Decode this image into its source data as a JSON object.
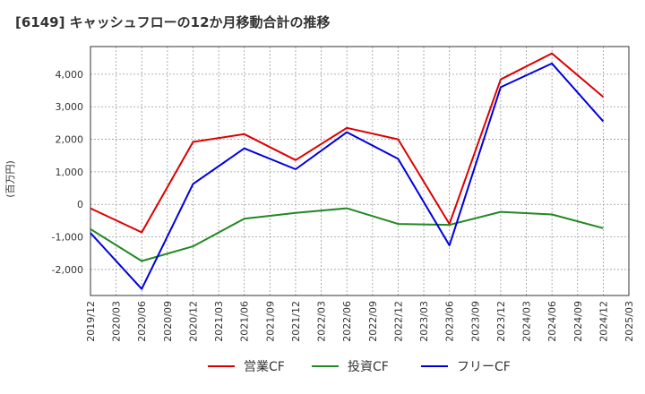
{
  "chart_data": {
    "type": "line",
    "title": "[6149]  キャッシュフローの12か月移動合計の推移",
    "xlabel": "",
    "ylabel": "(百万円)",
    "ylim": [
      -2800,
      4850
    ],
    "grid": true,
    "legend_position": "bottom",
    "y_ticks": [
      4000,
      3000,
      2000,
      1000,
      0,
      -1000,
      -2000
    ],
    "y_tick_labels": [
      "4,000",
      "3,000",
      "2,000",
      "1,000",
      "0",
      "-1,000",
      "-2,000"
    ],
    "x_tick_labels": [
      "2019/12",
      "2020/03",
      "2020/06",
      "2020/09",
      "2020/12",
      "2021/03",
      "2021/06",
      "2021/09",
      "2021/12",
      "2022/03",
      "2022/06",
      "2022/09",
      "2022/12",
      "2023/03",
      "2023/06",
      "2023/09",
      "2023/12",
      "2024/03",
      "2024/06",
      "2024/09",
      "2024/12",
      "2025/03"
    ],
    "data_indices": [
      0,
      2,
      4,
      6,
      8,
      10,
      12,
      14,
      16,
      18,
      20
    ],
    "series": [
      {
        "name": "営業CF",
        "color": "#dd0000",
        "values": [
          -120,
          -860,
          1920,
          2160,
          1360,
          2350,
          2000,
          -600,
          3840,
          4640,
          3300
        ]
      },
      {
        "name": "投資CF",
        "color": "#228822",
        "values": [
          -760,
          -1740,
          -1290,
          -440,
          -260,
          -120,
          -600,
          -630,
          -230,
          -310,
          -730
        ]
      },
      {
        "name": "フリーCF",
        "color": "#0000dd",
        "values": [
          -880,
          -2600,
          630,
          1720,
          1080,
          2220,
          1400,
          -1260,
          3600,
          4330,
          2550
        ]
      }
    ]
  }
}
